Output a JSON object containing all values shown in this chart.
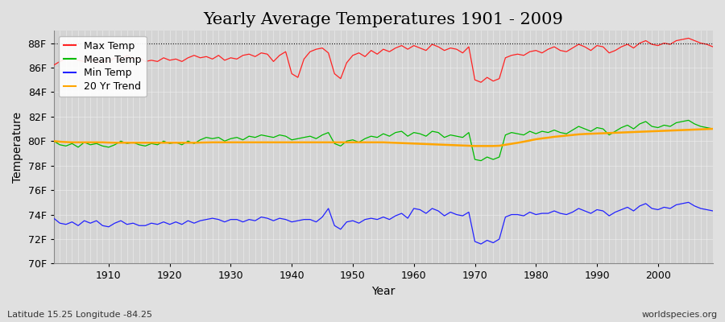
{
  "title": "Yearly Average Temperatures 1901 - 2009",
  "xlabel": "Year",
  "ylabel": "Temperature",
  "footnote_left": "Latitude 15.25 Longitude -84.25",
  "footnote_right": "worldspecies.org",
  "years": [
    1901,
    1902,
    1903,
    1904,
    1905,
    1906,
    1907,
    1908,
    1909,
    1910,
    1911,
    1912,
    1913,
    1914,
    1915,
    1916,
    1917,
    1918,
    1919,
    1920,
    1921,
    1922,
    1923,
    1924,
    1925,
    1926,
    1927,
    1928,
    1929,
    1930,
    1931,
    1932,
    1933,
    1934,
    1935,
    1936,
    1937,
    1938,
    1939,
    1940,
    1941,
    1942,
    1943,
    1944,
    1945,
    1946,
    1947,
    1948,
    1949,
    1950,
    1951,
    1952,
    1953,
    1954,
    1955,
    1956,
    1957,
    1958,
    1959,
    1960,
    1961,
    1962,
    1963,
    1964,
    1965,
    1966,
    1967,
    1968,
    1969,
    1970,
    1971,
    1972,
    1973,
    1974,
    1975,
    1976,
    1977,
    1978,
    1979,
    1980,
    1981,
    1982,
    1983,
    1984,
    1985,
    1986,
    1987,
    1988,
    1989,
    1990,
    1991,
    1992,
    1993,
    1994,
    1995,
    1996,
    1997,
    1998,
    1999,
    2000,
    2001,
    2002,
    2003,
    2004,
    2005,
    2006,
    2007,
    2008,
    2009
  ],
  "max_temp": [
    86.2,
    86.5,
    86.7,
    86.8,
    86.6,
    86.5,
    86.7,
    86.4,
    86.6,
    86.5,
    86.8,
    86.7,
    87.0,
    86.7,
    86.8,
    86.5,
    86.6,
    86.5,
    86.8,
    86.6,
    86.7,
    86.5,
    86.8,
    87.0,
    86.8,
    86.9,
    86.7,
    87.0,
    86.6,
    86.8,
    86.7,
    87.0,
    87.1,
    86.9,
    87.2,
    87.1,
    86.5,
    87.0,
    87.3,
    85.5,
    85.2,
    86.7,
    87.3,
    87.5,
    87.6,
    87.2,
    85.5,
    85.1,
    86.4,
    87.0,
    87.2,
    86.9,
    87.4,
    87.1,
    87.5,
    87.3,
    87.6,
    87.8,
    87.5,
    87.8,
    87.6,
    87.4,
    87.9,
    87.7,
    87.4,
    87.6,
    87.5,
    87.2,
    87.7,
    85.0,
    84.8,
    85.2,
    84.9,
    85.1,
    86.8,
    87.0,
    87.1,
    87.0,
    87.3,
    87.4,
    87.2,
    87.5,
    87.7,
    87.4,
    87.3,
    87.6,
    87.9,
    87.7,
    87.4,
    87.8,
    87.7,
    87.2,
    87.4,
    87.7,
    87.9,
    87.6,
    88.0,
    88.2,
    87.9,
    87.8,
    88.0,
    87.9,
    88.2,
    88.3,
    88.4,
    88.2,
    88.0,
    87.9,
    87.7
  ],
  "mean_temp": [
    80.0,
    79.7,
    79.6,
    79.8,
    79.5,
    79.9,
    79.7,
    79.8,
    79.6,
    79.5,
    79.7,
    80.0,
    79.8,
    79.9,
    79.7,
    79.6,
    79.8,
    79.7,
    80.0,
    79.8,
    79.9,
    79.7,
    80.0,
    79.8,
    80.1,
    80.3,
    80.2,
    80.3,
    80.0,
    80.2,
    80.3,
    80.1,
    80.4,
    80.3,
    80.5,
    80.4,
    80.3,
    80.5,
    80.4,
    80.1,
    80.2,
    80.3,
    80.4,
    80.2,
    80.5,
    80.7,
    79.8,
    79.6,
    80.0,
    80.1,
    79.9,
    80.2,
    80.4,
    80.3,
    80.6,
    80.4,
    80.7,
    80.8,
    80.4,
    80.7,
    80.6,
    80.4,
    80.8,
    80.7,
    80.3,
    80.5,
    80.4,
    80.3,
    80.7,
    78.5,
    78.4,
    78.7,
    78.5,
    78.7,
    80.5,
    80.7,
    80.6,
    80.5,
    80.8,
    80.6,
    80.8,
    80.7,
    80.9,
    80.7,
    80.6,
    80.9,
    81.2,
    81.0,
    80.8,
    81.1,
    81.0,
    80.5,
    80.8,
    81.1,
    81.3,
    81.0,
    81.4,
    81.6,
    81.2,
    81.1,
    81.3,
    81.2,
    81.5,
    81.6,
    81.7,
    81.4,
    81.2,
    81.1,
    81.0
  ],
  "min_temp": [
    73.7,
    73.3,
    73.2,
    73.4,
    73.1,
    73.5,
    73.3,
    73.5,
    73.1,
    73.0,
    73.3,
    73.5,
    73.2,
    73.3,
    73.1,
    73.1,
    73.3,
    73.2,
    73.4,
    73.2,
    73.4,
    73.2,
    73.5,
    73.3,
    73.5,
    73.6,
    73.7,
    73.6,
    73.4,
    73.6,
    73.6,
    73.4,
    73.6,
    73.5,
    73.8,
    73.7,
    73.5,
    73.7,
    73.6,
    73.4,
    73.5,
    73.6,
    73.6,
    73.4,
    73.8,
    74.5,
    73.1,
    72.8,
    73.4,
    73.5,
    73.3,
    73.6,
    73.7,
    73.6,
    73.8,
    73.6,
    73.9,
    74.1,
    73.7,
    74.5,
    74.4,
    74.1,
    74.5,
    74.3,
    73.9,
    74.2,
    74.0,
    73.9,
    74.2,
    71.8,
    71.6,
    71.9,
    71.7,
    72.0,
    73.8,
    74.0,
    74.0,
    73.9,
    74.2,
    74.0,
    74.1,
    74.1,
    74.3,
    74.1,
    74.0,
    74.2,
    74.5,
    74.3,
    74.1,
    74.4,
    74.3,
    73.9,
    74.2,
    74.4,
    74.6,
    74.3,
    74.7,
    74.9,
    74.5,
    74.4,
    74.6,
    74.5,
    74.8,
    74.9,
    75.0,
    74.7,
    74.5,
    74.4,
    74.3
  ],
  "trend_20yr": [
    80.0,
    79.95,
    79.92,
    79.9,
    79.9,
    79.9,
    79.9,
    79.9,
    79.9,
    79.88,
    79.87,
    79.87,
    79.87,
    79.87,
    79.87,
    79.87,
    79.87,
    79.87,
    79.87,
    79.87,
    79.87,
    79.87,
    79.87,
    79.87,
    79.88,
    79.89,
    79.9,
    79.9,
    79.9,
    79.9,
    79.9,
    79.9,
    79.9,
    79.9,
    79.9,
    79.9,
    79.9,
    79.9,
    79.9,
    79.9,
    79.9,
    79.9,
    79.9,
    79.9,
    79.9,
    79.9,
    79.9,
    79.9,
    79.9,
    79.9,
    79.9,
    79.9,
    79.9,
    79.9,
    79.9,
    79.88,
    79.86,
    79.84,
    79.82,
    79.8,
    79.78,
    79.76,
    79.74,
    79.72,
    79.7,
    79.68,
    79.66,
    79.64,
    79.62,
    79.6,
    79.6,
    79.6,
    79.6,
    79.62,
    79.7,
    79.78,
    79.86,
    79.95,
    80.05,
    80.15,
    80.22,
    80.28,
    80.35,
    80.4,
    80.45,
    80.5,
    80.55,
    80.58,
    80.6,
    80.62,
    80.64,
    80.66,
    80.68,
    80.7,
    80.72,
    80.74,
    80.76,
    80.78,
    80.8,
    80.82,
    80.84,
    80.86,
    80.88,
    80.9,
    80.92,
    80.94,
    80.96,
    80.98,
    81.0
  ],
  "max_color": "#ff2222",
  "mean_color": "#00bb00",
  "min_color": "#2222ff",
  "trend_color": "#ffa500",
  "bg_color": "#e0e0e0",
  "plot_bg_color": "#d4d4d4",
  "grid_color": "#f0f0f0",
  "dashed_line_y": 88.0,
  "ylim": [
    70,
    89
  ],
  "yticks": [
    70,
    72,
    74,
    76,
    78,
    80,
    82,
    84,
    86,
    88
  ],
  "ytick_labels": [
    "70F",
    "72F",
    "74F",
    "76F",
    "78F",
    "80F",
    "82F",
    "84F",
    "86F",
    "88F"
  ],
  "xticks": [
    1910,
    1920,
    1930,
    1940,
    1950,
    1960,
    1970,
    1980,
    1990,
    2000
  ],
  "title_fontsize": 15,
  "axis_fontsize": 10,
  "tick_fontsize": 9,
  "legend_fontsize": 9
}
